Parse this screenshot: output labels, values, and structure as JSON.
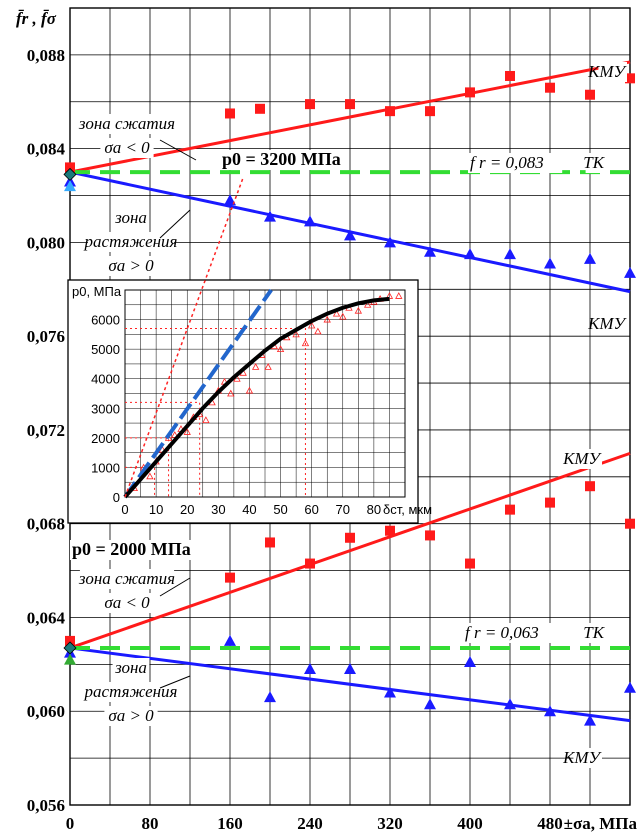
{
  "chart_data": [
    {
      "type": "scatter",
      "ylabel": "f̄r , f̄σ",
      "xlabel": "±σa, МПа",
      "xlim": [
        0,
        560
      ],
      "ylim": [
        0.056,
        0.09
      ],
      "x_ticks": [
        "0",
        "80",
        "160",
        "240",
        "320",
        "400",
        "480"
      ],
      "y_ticks": [
        "0,056",
        "0,060",
        "0,064",
        "0,068",
        "0,072",
        "0,076",
        "0,080",
        "0,084",
        "0,088"
      ],
      "grid": true,
      "series": [
        {
          "name": "КМУ",
          "color": "#ff1a1a",
          "line": {
            "x": [
              0,
              560
            ],
            "y": [
              0.083,
              0.0877
            ]
          },
          "x": [
            0,
            160,
            190,
            240,
            280,
            320,
            360,
            400,
            440,
            480,
            520,
            560
          ],
          "y": [
            0.0832,
            0.0855,
            0.0857,
            0.0859,
            0.0859,
            0.0856,
            0.0856,
            0.0864,
            0.0871,
            0.0866,
            0.0863,
            0.087
          ]
        },
        {
          "name": "КМУ",
          "color": "#1a1aff",
          "line": {
            "x": [
              0,
              560
            ],
            "y": [
              0.083,
              0.0779
            ]
          },
          "x": [
            0,
            160,
            200,
            240,
            280,
            320,
            360,
            400,
            440,
            480,
            520,
            560
          ],
          "y": [
            0.0826,
            0.0818,
            0.0811,
            0.0809,
            0.0803,
            0.08,
            0.0796,
            0.0795,
            0.0795,
            0.0791,
            0.0793,
            0.0787
          ]
        },
        {
          "name": "ТК",
          "color": "#33dd33",
          "dashed": true,
          "line": {
            "x": [
              0,
              560
            ],
            "y": [
              0.083,
              0.083
            ]
          }
        },
        {
          "name": "КМУ",
          "color": "#ff1a1a",
          "line": {
            "x": [
              0,
              560
            ],
            "y": [
              0.0627,
              0.071
            ]
          },
          "x": [
            0,
            160,
            200,
            240,
            280,
            320,
            360,
            400,
            440,
            480,
            520,
            560
          ],
          "y": [
            0.063,
            0.0657,
            0.0672,
            0.0663,
            0.0674,
            0.0677,
            0.0675,
            0.0663,
            0.0686,
            0.0689,
            0.0696,
            0.068
          ]
        },
        {
          "name": "КМУ",
          "color": "#1a1aff",
          "line": {
            "x": [
              0,
              560
            ],
            "y": [
              0.0627,
              0.0596
            ]
          },
          "x": [
            0,
            160,
            200,
            240,
            280,
            320,
            360,
            400,
            440,
            480,
            520,
            560
          ],
          "y": [
            0.0625,
            0.063,
            0.0606,
            0.0618,
            0.0618,
            0.0608,
            0.0603,
            0.0621,
            0.0603,
            0.06,
            0.0596,
            0.061
          ]
        },
        {
          "name": "ТК",
          "color": "#33dd33",
          "dashed": true,
          "line": {
            "x": [
              0,
              560
            ],
            "y": [
              0.0627,
              0.0627
            ]
          }
        }
      ],
      "extra_points": [
        {
          "x": 0,
          "y": 0.0829,
          "color": "#1a7a7a",
          "shape": "diamond"
        },
        {
          "x": 0,
          "y": 0.0824,
          "color": "#33aaff",
          "shape": "triangle"
        },
        {
          "x": 0,
          "y": 0.0627,
          "color": "#1a7a7a",
          "shape": "diamond"
        },
        {
          "x": 0,
          "y": 0.0622,
          "color": "#33aa33",
          "shape": "triangle"
        }
      ],
      "annotations": {
        "kmu": "КМУ",
        "tk": "ТК",
        "fr_upper": "f r = 0,083",
        "fr_lower": "f r = 0,063",
        "p0_upper": "p0 = 3200 МПа",
        "p0_lower": "p0 = 2000 МПа",
        "zone_compression_1": "зона сжатия",
        "zone_compression_2": "σa < 0",
        "zone_tension_1": "зона",
        "zone_tension_2": "растяжения",
        "zone_tension_3": "σa > 0"
      }
    },
    {
      "type": "line",
      "title": "",
      "ylabel": "p0, МПа",
      "xlabel": "δст, мкм",
      "xlim": [
        0,
        90
      ],
      "ylim": [
        0,
        7000
      ],
      "x_ticks": [
        "0",
        "10",
        "20",
        "30",
        "40",
        "50",
        "60",
        "70",
        "80"
      ],
      "y_ticks": [
        "0",
        "1000",
        "2000",
        "3000",
        "4000",
        "5000",
        "6000"
      ],
      "grid": true,
      "curve": {
        "x": [
          0,
          5,
          10,
          15,
          20,
          25,
          30,
          35,
          40,
          45,
          50,
          55,
          60,
          65,
          70,
          75,
          80,
          85
        ],
        "y": [
          0,
          600,
          1200,
          1800,
          2400,
          3000,
          3550,
          4050,
          4500,
          4950,
          5350,
          5650,
          5950,
          6200,
          6400,
          6550,
          6650,
          6700
        ]
      },
      "dash_line": {
        "x": [
          0,
          47
        ],
        "y": [
          0,
          7000
        ]
      },
      "red_dotted_line": {
        "x": [
          0,
          30
        ],
        "y": [
          0,
          7000
        ]
      },
      "scatter": {
        "x": [
          3,
          6,
          8,
          10,
          12,
          14,
          16,
          18,
          20,
          22,
          24,
          26,
          28,
          30,
          32,
          34,
          36,
          38,
          40,
          42,
          44,
          46,
          48,
          50,
          52,
          55,
          58,
          60,
          62,
          65,
          68,
          70,
          72,
          75,
          78,
          80,
          82,
          85,
          88
        ],
        "y": [
          300,
          1000,
          700,
          1200,
          1600,
          2000,
          2100,
          2300,
          2200,
          2700,
          2800,
          2600,
          3200,
          3600,
          3900,
          3500,
          4000,
          4200,
          3600,
          4400,
          4800,
          4400,
          5100,
          5000,
          5400,
          5500,
          5200,
          5800,
          5600,
          6000,
          6200,
          6100,
          6400,
          6300,
          6500,
          6600,
          6700,
          6800,
          6800
        ]
      },
      "guides": [
        {
          "x": 9.5,
          "y": 1000
        },
        {
          "x": 14,
          "y": 2000
        },
        {
          "x": 24,
          "y": 3200
        },
        {
          "x": 58,
          "y": 5700
        }
      ]
    }
  ]
}
